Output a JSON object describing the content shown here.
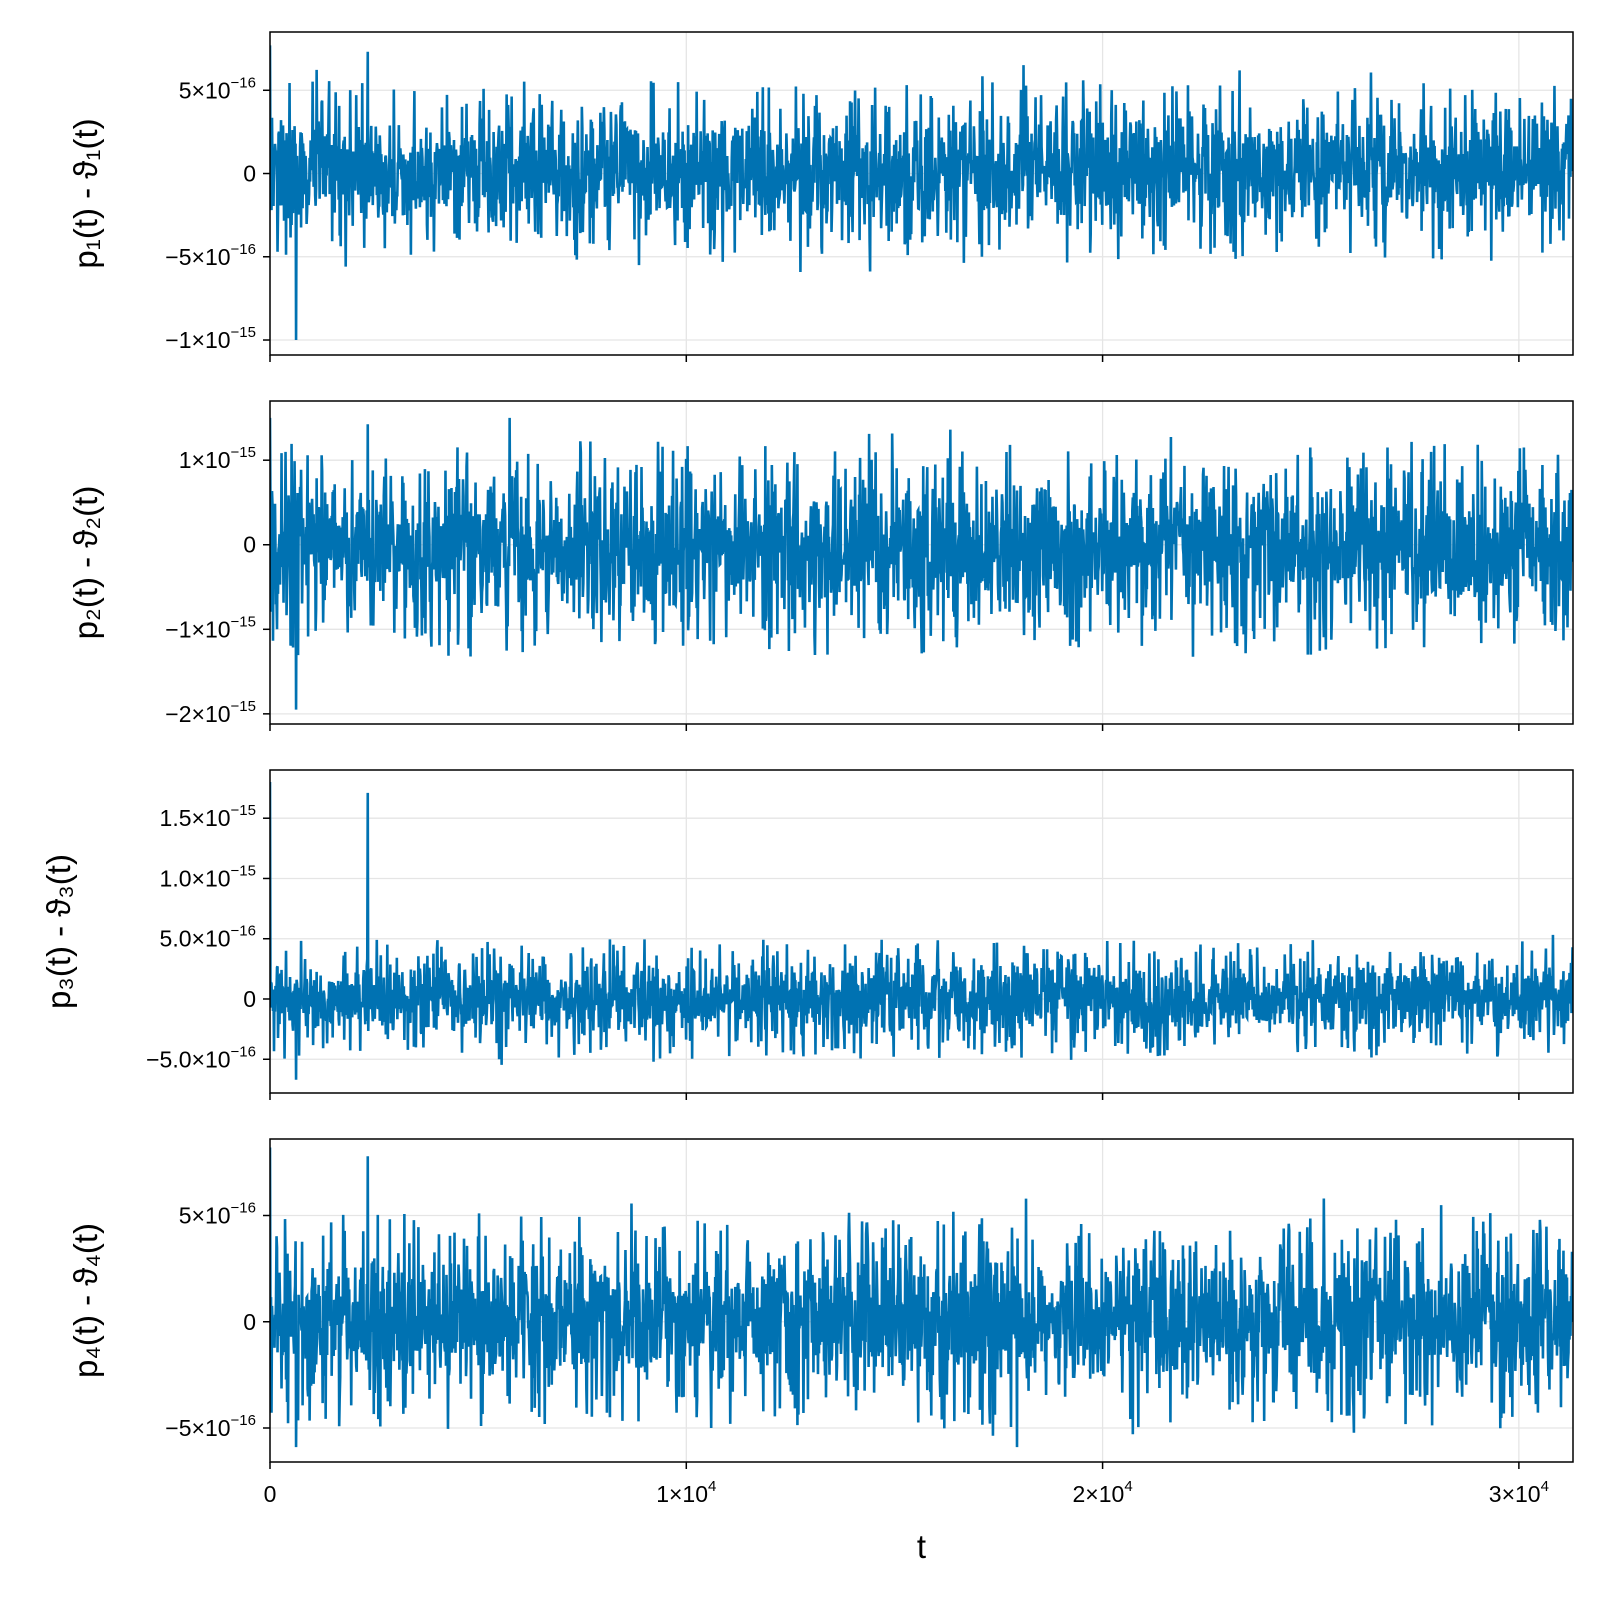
{
  "chart_data": {
    "type": "line",
    "x_axis": {
      "label": "t",
      "range": [
        0,
        31300
      ],
      "ticks": [
        {
          "value": 0,
          "mantissa": "0",
          "exp": ""
        },
        {
          "value": 10000,
          "mantissa": "1×10",
          "exp": "4"
        },
        {
          "value": 20000,
          "mantissa": "2×10",
          "exp": "4"
        },
        {
          "value": 30000,
          "mantissa": "3×10",
          "exp": "4"
        }
      ]
    },
    "line_color": "#0072b2",
    "grid": true,
    "panels": [
      {
        "ylabel": "p₁(t) - ϑ₁(t)",
        "ylim": [
          -1.09e-15,
          8.5e-16
        ],
        "yticks": [
          {
            "value": 5e-16,
            "mantissa": "5×10",
            "exp": "−16"
          },
          {
            "value": 0,
            "mantissa": "0",
            "exp": ""
          },
          {
            "value": -5e-16,
            "mantissa": "−5×10",
            "exp": "−16"
          },
          {
            "value": -1e-15,
            "mantissa": "−1×10",
            "exp": "−15"
          }
        ],
        "envelope": {
          "typical_low": -3.4e-16,
          "typical_high": 3.8e-16,
          "extreme_low": -1e-15,
          "extreme_high": 7.7e-16
        }
      },
      {
        "ylabel": "p₂(t) - ϑ₂(t)",
        "ylim": [
          -2.12e-15,
          1.7e-15
        ],
        "yticks": [
          {
            "value": 1e-15,
            "mantissa": "1×10",
            "exp": "−15"
          },
          {
            "value": 0,
            "mantissa": "0",
            "exp": ""
          },
          {
            "value": -1e-15,
            "mantissa": "−1×10",
            "exp": "−15"
          },
          {
            "value": -2e-15,
            "mantissa": "−2×10",
            "exp": "−15"
          }
        ],
        "envelope": {
          "typical_low": -9e-16,
          "typical_high": 8e-16,
          "extreme_low": -1.95e-15,
          "extreme_high": 1.5e-15
        }
      },
      {
        "ylabel": "p₃(t) - ϑ₃(t)",
        "ylim": [
          -7.8e-16,
          1.9e-15
        ],
        "yticks": [
          {
            "value": 1.5e-15,
            "mantissa": "1.5×10",
            "exp": "−15"
          },
          {
            "value": 1e-15,
            "mantissa": "1.0×10",
            "exp": "−15"
          },
          {
            "value": 5e-16,
            "mantissa": "5.0×10",
            "exp": "−16"
          },
          {
            "value": 0,
            "mantissa": "0",
            "exp": ""
          },
          {
            "value": -5e-16,
            "mantissa": "−5.0×10",
            "exp": "−16"
          }
        ],
        "envelope": {
          "typical_low": -3.3e-16,
          "typical_high": 3.3e-16,
          "extreme_low": -6.7e-16,
          "extreme_high": 1.8e-15
        }
      },
      {
        "ylabel": "p₄(t) - ϑ₄(t)",
        "ylim": [
          -6.6e-16,
          8.6e-16
        ],
        "yticks": [
          {
            "value": 5e-16,
            "mantissa": "5×10",
            "exp": "−16"
          },
          {
            "value": 0,
            "mantissa": "0",
            "exp": ""
          },
          {
            "value": -5e-16,
            "mantissa": "−5×10",
            "exp": "−16"
          }
        ],
        "envelope": {
          "typical_low": -3.3e-16,
          "typical_high": 3.6e-16,
          "extreme_low": -5.9e-16,
          "extreme_high": 8.2e-16
        }
      }
    ]
  }
}
